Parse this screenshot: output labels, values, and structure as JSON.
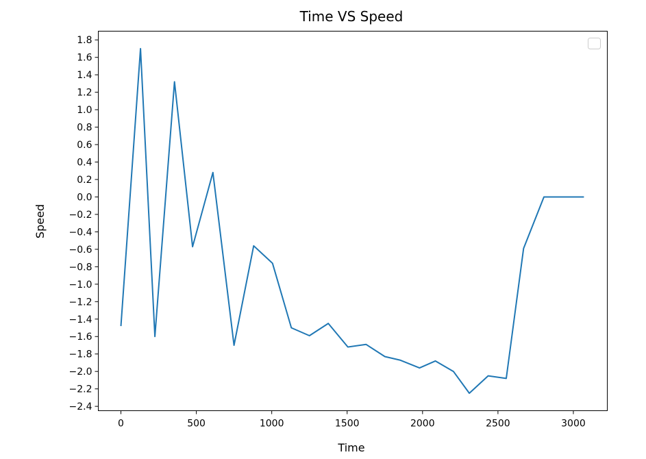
{
  "chart_data": {
    "type": "line",
    "title": "Time VS Speed",
    "xlabel": "Time",
    "ylabel": "Speed",
    "xlim": [
      -150,
      3225
    ],
    "ylim": [
      -2.45,
      1.9
    ],
    "xticks": [
      0,
      500,
      1000,
      1500,
      2000,
      2500,
      3000
    ],
    "yticks": [
      1.8,
      1.6,
      1.4,
      1.2,
      1.0,
      0.8,
      0.6,
      0.4,
      0.2,
      0.0,
      -0.2,
      -0.4,
      -0.6,
      -0.8,
      -1.0,
      -1.2,
      -1.4,
      -1.6,
      -1.8,
      -2.0,
      -2.2,
      -2.4
    ],
    "ytick_labels": [
      "1.8",
      "1.6",
      "1.4",
      "1.2",
      "1.0",
      "0.8",
      "0.6",
      "0.4",
      "0.2",
      "0.0",
      "−0.2",
      "−0.4",
      "−0.6",
      "−0.8",
      "−1.0",
      "−1.2",
      "−1.4",
      "−1.6",
      "−1.8",
      "−2.0",
      "−2.2",
      "−2.4"
    ],
    "grid": false,
    "legend": "top-right, empty",
    "color": "#1f77b4",
    "series": [
      {
        "x": [
          0,
          130,
          225,
          355,
          475,
          610,
          750,
          880,
          1005,
          1130,
          1250,
          1375,
          1505,
          1625,
          1750,
          1850,
          1980,
          2085,
          2205,
          2310,
          2435,
          2555,
          2670,
          2805,
          2940,
          3070
        ],
        "y": [
          -1.48,
          1.7,
          -1.6,
          1.32,
          -0.57,
          0.28,
          -1.7,
          -0.56,
          -0.76,
          -1.5,
          -1.59,
          -1.45,
          -1.72,
          -1.69,
          -1.83,
          -1.87,
          -1.96,
          -1.88,
          -2.0,
          -2.25,
          -2.05,
          -2.08,
          -0.59,
          0.0,
          0.0,
          0.0
        ]
      }
    ]
  }
}
